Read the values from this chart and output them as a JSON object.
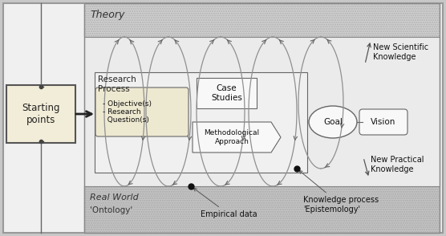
{
  "fig_bg": "#c8c8c8",
  "outer_bg": "#f0f0f0",
  "theory_bg": "#d8d8d8",
  "main_bg": "#e8e8e8",
  "realworld_bg": "#c8c8c8",
  "sp_box_color": "#f2edd8",
  "white_box": "#f8f8f8",
  "obj_box": "#ede8d0",
  "theory_label": "Theory",
  "realworld_label": "Real World",
  "ontology_label": "'Ontology'",
  "empirical_label": "Empirical data",
  "epistemology_label": "Knowledge process\n'Epistemology'",
  "starting_points_label": "Starting\npoints",
  "research_process_label": "Research\nProcess",
  "objectives_label": "- Objective(s)\n- Research\n  Question(s)",
  "case_studies_label": "Case\nStudies",
  "methodological_label": "Methodological\nApproach",
  "goal_label": "Goal",
  "vision_label": "Vision",
  "new_scientific_label": "New Scientific\nKnowledge",
  "new_practical_label": "New Practical\nKnowledge",
  "loop_color": "#909090",
  "arrow_color": "#666666",
  "box_edge": "#555555"
}
